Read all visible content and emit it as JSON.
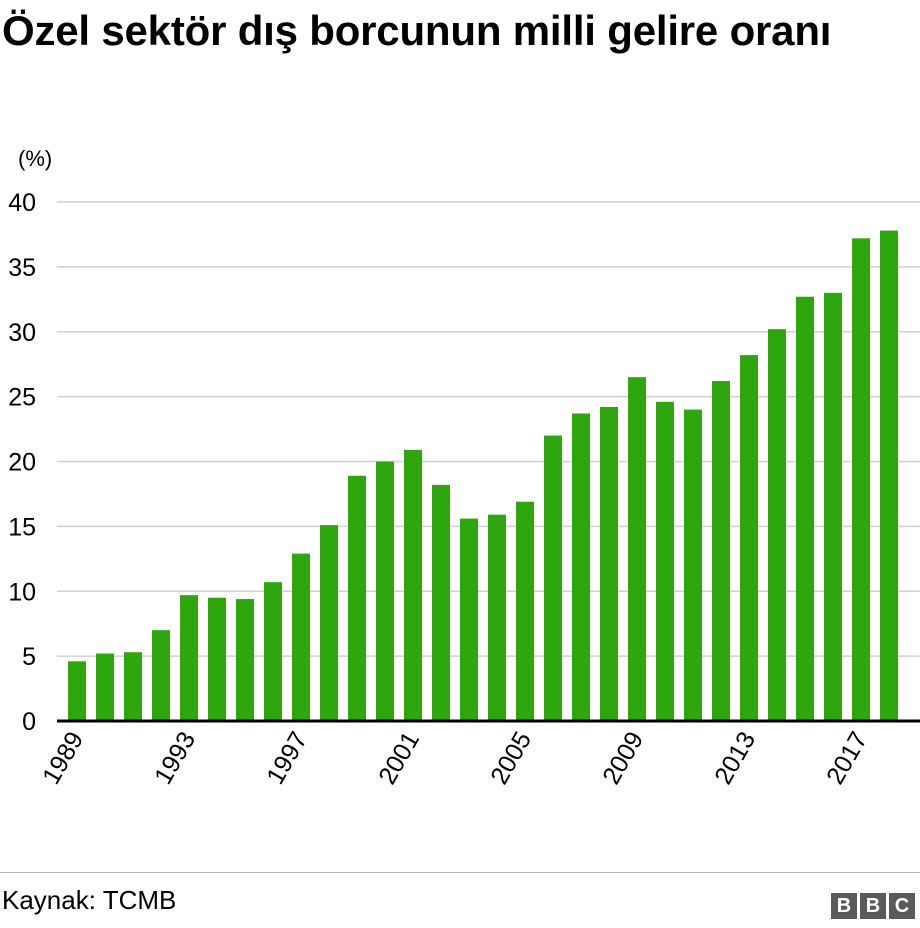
{
  "title": "Özel sektör dış borcunun milli gelire oranı",
  "unit_label": "(%)",
  "source": "Kaynak: TCMB",
  "logo": {
    "letters": [
      "B",
      "B",
      "C"
    ]
  },
  "colors": {
    "bar": "#2ea70f",
    "grid": "#d0d0d0",
    "axis": "#000000",
    "logo": "#5a5a5a"
  },
  "chart_data": {
    "type": "bar",
    "title": "Özel sektör dış borcunun milli gelire oranı",
    "ylabel": "(%)",
    "xlabel": "",
    "ylim": [
      0,
      40
    ],
    "yticks": [
      0,
      5,
      10,
      15,
      20,
      25,
      30,
      35,
      40
    ],
    "x_tick_labels": [
      "1989",
      "1993",
      "1997",
      "2001",
      "2005",
      "2009",
      "2013",
      "2017"
    ],
    "grid": true,
    "categories": [
      "1989",
      "1990",
      "1991",
      "1992",
      "1993",
      "1994",
      "1995",
      "1996",
      "1997",
      "1998",
      "1999",
      "2000",
      "2001",
      "2002",
      "2003",
      "2004",
      "2005",
      "2006",
      "2007",
      "2008",
      "2009",
      "2010",
      "2011",
      "2012",
      "2013",
      "2014",
      "2015",
      "2016",
      "2017",
      "2018"
    ],
    "values": [
      4.6,
      5.2,
      5.3,
      7.0,
      9.7,
      9.5,
      9.4,
      10.7,
      12.9,
      15.1,
      18.9,
      20.0,
      20.9,
      18.2,
      15.6,
      15.9,
      16.9,
      22.0,
      23.7,
      24.2,
      26.5,
      24.6,
      24.0,
      26.2,
      28.2,
      30.2,
      32.7,
      33.0,
      37.2,
      37.8
    ]
  }
}
